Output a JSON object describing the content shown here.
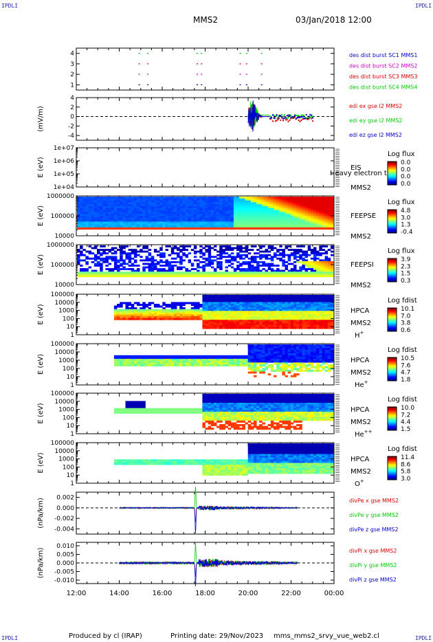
{
  "header": {
    "logo_left": "IPDLI",
    "logo_right": "IPDLI",
    "title": "MMS2",
    "datetime": "03/Jan/2018 12:00"
  },
  "footer": {
    "logo_left": "IPDLI",
    "logo_right": "IPDLI",
    "produced_by": "Produced by cl (IRAP)",
    "printing_date": "Printing date: 29/Nov/2023",
    "filename": "mms_mms2_srvy_vue_web2.cl"
  },
  "colors": {
    "red": "#dd0000",
    "green": "#00cc00",
    "blue": "#0000cc",
    "magenta": "#cc00cc"
  },
  "chart_data": {
    "type": "multi-panel time series",
    "x_axis": {
      "range": [
        "12:00",
        "00:00"
      ],
      "tick_labels": [
        "12:00",
        "14:00",
        "16:00",
        "18:00",
        "20:00",
        "22:00",
        "00:00"
      ],
      "tick_hours": [
        12,
        14,
        16,
        18,
        20,
        22,
        24
      ]
    },
    "panels": [
      {
        "id": "burst",
        "type": "scatter",
        "ylabel": "",
        "ylim": [
          0.5,
          4.5
        ],
        "y_ticks": [
          "1",
          "2",
          "3",
          "4"
        ],
        "legend": [
          {
            "label": "des dist burst SC1 MMS1",
            "color": "#0000cc"
          },
          {
            "label": "des dist burst SC2 MMS2",
            "color": "#cc00cc"
          },
          {
            "label": "des dist burst SC3 MMS3",
            "color": "#dd0000"
          },
          {
            "label": "des dist burst SC4 MMS4",
            "color": "#00cc00"
          }
        ],
        "burst_hours": [
          14.9,
          15.3,
          17.6,
          17.8,
          19.6,
          19.9,
          20.6
        ]
      },
      {
        "id": "edi",
        "type": "line",
        "ylabel": "(mV/m)",
        "ylim": [
          -5,
          4
        ],
        "y_ticks": [
          "4",
          "2",
          "0",
          "-2",
          "-4"
        ],
        "legend": [
          {
            "label": "edi ex gse l2 MMS2",
            "color": "#dd0000"
          },
          {
            "label": "edi ey gse l2 MMS2",
            "color": "#00cc00"
          },
          {
            "label": "edi ez gse l2 MMS2",
            "color": "#0000cc"
          }
        ]
      },
      {
        "id": "eis",
        "type": "heatmap",
        "ylabel": "E (eV)",
        "y_ticks": [
          "1e+07",
          "1e+06",
          "1e+05",
          "1e+04"
        ],
        "label_lines": [
          "EIS",
          "MMS2"
        ],
        "overlay_text": "Heavy electron t",
        "colorbar": {
          "title": "Log flux",
          "ticks": [
            "0.0",
            "0.0",
            "0.0",
            "0.0"
          ]
        }
      },
      {
        "id": "feepse",
        "type": "heatmap",
        "ylabel": "E (eV)",
        "y_ticks": [
          "1000000",
          "100000",
          "10000"
        ],
        "label_lines": [
          "FEEPSE",
          "MMS2"
        ],
        "colorbar": {
          "title": "Log flux",
          "ticks": [
            "4.8",
            "3.0",
            "1.3",
            "-0.4"
          ]
        }
      },
      {
        "id": "feepsi",
        "type": "heatmap",
        "ylabel": "E (eV)",
        "y_ticks": [
          "1000000",
          "100000",
          "10000"
        ],
        "label_lines": [
          "FEEPSI",
          "MMS2"
        ],
        "colorbar": {
          "title": "Log flux",
          "ticks": [
            "3.9",
            "2.3",
            "1.5",
            "0.3"
          ]
        }
      },
      {
        "id": "hpca_h",
        "type": "heatmap",
        "ylabel": "E (eV)",
        "y_ticks": [
          "100000",
          "10000",
          "1000",
          "100",
          "10",
          "1"
        ],
        "label_lines": [
          "HPCA",
          "MMS2"
        ],
        "species": "H",
        "species_sup": "+",
        "colorbar": {
          "title": "Log fdist",
          "ticks": [
            "10.1",
            "7.0",
            "3.8",
            "0.6"
          ]
        }
      },
      {
        "id": "hpca_he1",
        "type": "heatmap",
        "ylabel": "E (eV)",
        "y_ticks": [
          "100000",
          "10000",
          "1000",
          "100",
          "10",
          "1"
        ],
        "label_lines": [
          "HPCA",
          "MMS2"
        ],
        "species": "He",
        "species_sup": "+",
        "colorbar": {
          "title": "Log fdist",
          "ticks": [
            "10.5",
            "7.6",
            "4.7",
            "1.8"
          ]
        }
      },
      {
        "id": "hpca_he2",
        "type": "heatmap",
        "ylabel": "E (eV)",
        "y_ticks": [
          "100000",
          "10000",
          "1000",
          "100",
          "10",
          "1"
        ],
        "label_lines": [
          "HPCA",
          "MMS2"
        ],
        "species": "He",
        "species_sup": "++",
        "colorbar": {
          "title": "Log fdist",
          "ticks": [
            "10.0",
            "7.2",
            "4.4",
            "1.5"
          ]
        }
      },
      {
        "id": "hpca_o",
        "type": "heatmap",
        "ylabel": "E (eV)",
        "y_ticks": [
          "100000",
          "10000",
          "1000",
          "100",
          "10",
          "1"
        ],
        "label_lines": [
          "HPCA",
          "MMS2"
        ],
        "species": "O",
        "species_sup": "+",
        "colorbar": {
          "title": "Log fdist",
          "ticks": [
            "11.4",
            "8.6",
            "5.8",
            "3.0"
          ]
        }
      },
      {
        "id": "divpe",
        "type": "line",
        "ylabel": "(nPa/km)",
        "ylim": [
          -0.005,
          0.003
        ],
        "y_ticks": [
          "0.002",
          "0.000",
          "-0.002",
          "-0.004"
        ],
        "legend": [
          {
            "label": "divPe x gse MMS2",
            "color": "#dd0000"
          },
          {
            "label": "divPe y gse MMS2",
            "color": "#00cc00"
          },
          {
            "label": "divPe z gse MMS2",
            "color": "#0000cc"
          }
        ]
      },
      {
        "id": "divpi",
        "type": "line",
        "ylabel": "(nPa/km)",
        "ylim": [
          -0.012,
          0.012
        ],
        "y_ticks": [
          "0.010",
          "0.005",
          "0.000",
          "-0.005",
          "-0.010"
        ],
        "legend": [
          {
            "label": "divPi x gse MMS2",
            "color": "#dd0000"
          },
          {
            "label": "divPi y gse MMS2",
            "color": "#00cc00"
          },
          {
            "label": "divPi z gse MMS2",
            "color": "#0000cc"
          }
        ]
      }
    ]
  }
}
